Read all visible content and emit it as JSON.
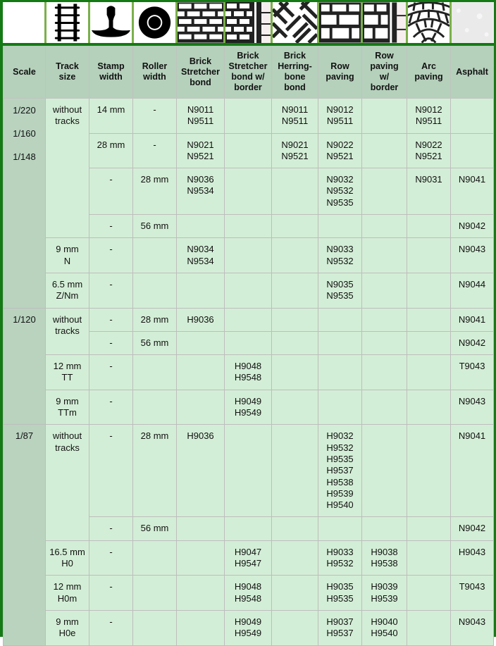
{
  "colors": {
    "border": "#147a14",
    "icon_separator": "#7ab04a",
    "header_bg": "#b5d0bb",
    "scale_bg": "#b9d3bf",
    "cell_bg": "#d3eed6"
  },
  "icons": [
    "blank",
    "rail-track-icon",
    "rail-profile-icon",
    "roller-icon",
    "brick-stretcher-icon",
    "brick-stretcher-border-icon",
    "herringbone-icon",
    "row-paving-icon",
    "row-paving-border-icon",
    "arc-paving-icon",
    "asphalt-icon"
  ],
  "headers": [
    "Scale",
    "Track\nsize",
    "Stamp\nwidth",
    "Roller\nwidth",
    "Brick\nStretcher\nbond",
    "Brick\nStretcher\nbond w/\nborder",
    "Brick\nHerring-\nbone\nbond",
    "Row\npaving",
    "Row\npaving\nw/\nborder",
    "Arc\npaving",
    "Asphalt"
  ],
  "rows": [
    [
      {
        "t": "1/220\n1/160\n1/148",
        "rs": 6,
        "scale": true,
        "multi": true
      },
      {
        "t": "without\ntracks",
        "rs": 4
      },
      {
        "t": "14 mm"
      },
      {
        "t": "-"
      },
      {
        "t": "N9011\nN9511"
      },
      {
        "t": ""
      },
      {
        "t": "N9011\nN9511"
      },
      {
        "t": "N9012\nN9511"
      },
      {
        "t": ""
      },
      {
        "t": "N9012\nN9511"
      },
      {
        "t": ""
      }
    ],
    [
      {
        "t": "28 mm"
      },
      {
        "t": "-"
      },
      {
        "t": "N9021\nN9521"
      },
      {
        "t": ""
      },
      {
        "t": "N9021\nN9521"
      },
      {
        "t": "N9022\nN9521"
      },
      {
        "t": ""
      },
      {
        "t": "N9022\nN9521"
      },
      {
        "t": ""
      }
    ],
    [
      {
        "t": "-"
      },
      {
        "t": "28 mm"
      },
      {
        "t": "N9036\nN9534"
      },
      {
        "t": ""
      },
      {
        "t": ""
      },
      {
        "t": "N9032\nN9532\nN9535"
      },
      {
        "t": ""
      },
      {
        "t": "N9031"
      },
      {
        "t": "N9041"
      }
    ],
    [
      {
        "t": "-"
      },
      {
        "t": "56 mm"
      },
      {
        "t": ""
      },
      {
        "t": ""
      },
      {
        "t": ""
      },
      {
        "t": ""
      },
      {
        "t": ""
      },
      {
        "t": ""
      },
      {
        "t": "N9042"
      }
    ],
    [
      {
        "t": "9 mm\nN"
      },
      {
        "t": "-"
      },
      {
        "t": ""
      },
      {
        "t": "N9034\nN9534"
      },
      {
        "t": ""
      },
      {
        "t": ""
      },
      {
        "t": "N9033\nN9532"
      },
      {
        "t": ""
      },
      {
        "t": ""
      },
      {
        "t": "N9043"
      }
    ],
    [
      {
        "t": "6.5 mm\nZ/Nm"
      },
      {
        "t": "-"
      },
      {
        "t": ""
      },
      {
        "t": ""
      },
      {
        "t": ""
      },
      {
        "t": ""
      },
      {
        "t": "N9035\nN9535"
      },
      {
        "t": ""
      },
      {
        "t": ""
      },
      {
        "t": "N9044"
      }
    ],
    [
      {
        "t": "1/120",
        "rs": 4,
        "scale": true
      },
      {
        "t": "without\ntracks",
        "rs": 2
      },
      {
        "t": "-"
      },
      {
        "t": "28 mm"
      },
      {
        "t": "H9036"
      },
      {
        "t": ""
      },
      {
        "t": ""
      },
      {
        "t": ""
      },
      {
        "t": ""
      },
      {
        "t": ""
      },
      {
        "t": "N9041"
      }
    ],
    [
      {
        "t": "-"
      },
      {
        "t": "56 mm"
      },
      {
        "t": ""
      },
      {
        "t": ""
      },
      {
        "t": ""
      },
      {
        "t": ""
      },
      {
        "t": ""
      },
      {
        "t": ""
      },
      {
        "t": "N9042"
      }
    ],
    [
      {
        "t": "12 mm\nTT"
      },
      {
        "t": "-"
      },
      {
        "t": ""
      },
      {
        "t": ""
      },
      {
        "t": "H9048\nH9548"
      },
      {
        "t": ""
      },
      {
        "t": ""
      },
      {
        "t": ""
      },
      {
        "t": ""
      },
      {
        "t": "T9043"
      }
    ],
    [
      {
        "t": "9 mm\nTTm"
      },
      {
        "t": "-"
      },
      {
        "t": ""
      },
      {
        "t": ""
      },
      {
        "t": "H9049\nH9549"
      },
      {
        "t": ""
      },
      {
        "t": ""
      },
      {
        "t": ""
      },
      {
        "t": ""
      },
      {
        "t": "N9043"
      }
    ],
    [
      {
        "t": "1/87",
        "rs": 5,
        "scale": true
      },
      {
        "t": "without\ntracks",
        "rs": 2
      },
      {
        "t": "-"
      },
      {
        "t": "28 mm"
      },
      {
        "t": "H9036"
      },
      {
        "t": ""
      },
      {
        "t": ""
      },
      {
        "t": "H9032\nH9532\nH9535\nH9537\nH9538\nH9539\nH9540"
      },
      {
        "t": ""
      },
      {
        "t": ""
      },
      {
        "t": "N9041"
      }
    ],
    [
      {
        "t": "-"
      },
      {
        "t": "56 mm"
      },
      {
        "t": ""
      },
      {
        "t": ""
      },
      {
        "t": ""
      },
      {
        "t": ""
      },
      {
        "t": ""
      },
      {
        "t": ""
      },
      {
        "t": "N9042"
      }
    ],
    [
      {
        "t": "16.5 mm\nH0"
      },
      {
        "t": "-"
      },
      {
        "t": ""
      },
      {
        "t": ""
      },
      {
        "t": "H9047\nH9547"
      },
      {
        "t": ""
      },
      {
        "t": "H9033\nH9532"
      },
      {
        "t": "H9038\nH9538"
      },
      {
        "t": ""
      },
      {
        "t": "H9043"
      }
    ],
    [
      {
        "t": "12 mm\nH0m"
      },
      {
        "t": "-"
      },
      {
        "t": ""
      },
      {
        "t": ""
      },
      {
        "t": "H9048\nH9548"
      },
      {
        "t": ""
      },
      {
        "t": "H9035\nH9535"
      },
      {
        "t": "H9039\nH9539"
      },
      {
        "t": ""
      },
      {
        "t": "T9043"
      }
    ],
    [
      {
        "t": "9 mm\nH0e"
      },
      {
        "t": "-"
      },
      {
        "t": ""
      },
      {
        "t": ""
      },
      {
        "t": "H9049\nH9549"
      },
      {
        "t": ""
      },
      {
        "t": "H9037\nH9537"
      },
      {
        "t": "H9040\nH9540"
      },
      {
        "t": ""
      },
      {
        "t": "N9043"
      }
    ]
  ]
}
